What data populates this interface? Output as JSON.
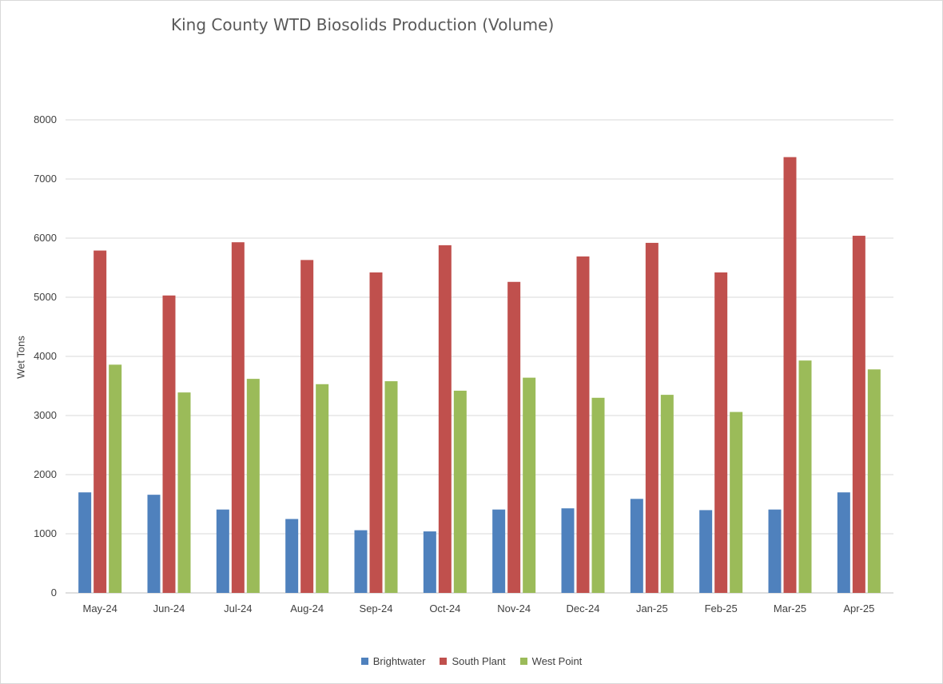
{
  "chart_data": {
    "type": "bar",
    "title": "King County WTD Biosolids Production (Volume)",
    "xlabel": "",
    "ylabel": "Wet Tons",
    "ylim": [
      0,
      8000
    ],
    "yticks": [
      "0",
      "1000",
      "2000",
      "3000",
      "4000",
      "5000",
      "6000",
      "7000",
      "8000"
    ],
    "grid": "horizontal",
    "legend_position": "bottom",
    "categories": [
      "May-24",
      "Jun-24",
      "Jul-24",
      "Aug-24",
      "Sep-24",
      "Oct-24",
      "Nov-24",
      "Dec-24",
      "Jan-25",
      "Feb-25",
      "Mar-25",
      "Apr-25"
    ],
    "series": [
      {
        "name": "Brightwater",
        "color": "#4f81bd",
        "values": [
          1700,
          1660,
          1410,
          1250,
          1060,
          1040,
          1410,
          1430,
          1590,
          1400,
          1410,
          1700
        ]
      },
      {
        "name": "South Plant",
        "color": "#c0504d",
        "values": [
          5790,
          5030,
          5930,
          5630,
          5420,
          5880,
          5260,
          5690,
          5920,
          5420,
          7370,
          6040
        ]
      },
      {
        "name": "West Point",
        "color": "#9bbb59",
        "values": [
          3860,
          3390,
          3620,
          3530,
          3580,
          3420,
          3640,
          3300,
          3350,
          3060,
          3930,
          3780
        ]
      }
    ]
  }
}
